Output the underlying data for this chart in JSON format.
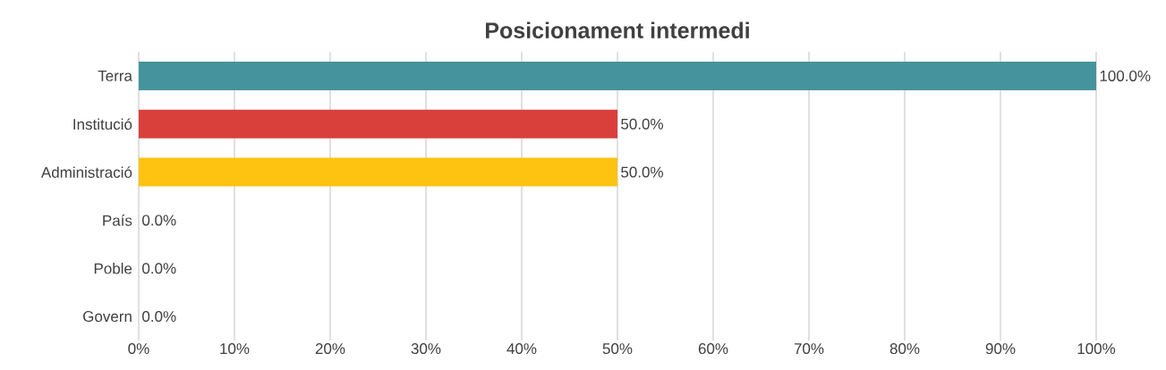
{
  "chart_data": {
    "type": "bar",
    "orientation": "horizontal",
    "title": "Posicionament intermedi",
    "categories": [
      "Terra",
      "Institució",
      "Administració",
      "País",
      "Poble",
      "Govern"
    ],
    "values": [
      100,
      50,
      50,
      0,
      0,
      0
    ],
    "colors": [
      "#45939c",
      "#d9403b",
      "#fec310",
      "#45939c",
      "#d9403b",
      "#fec310"
    ],
    "value_labels": [
      "100.0%",
      "50.0%",
      "50.0%",
      "0.0%",
      "0.0%",
      "0.0%"
    ],
    "xlim": [
      0,
      100
    ],
    "xticks": [
      {
        "value": 0,
        "label": "0%"
      },
      {
        "value": 10,
        "label": "10%"
      },
      {
        "value": 20,
        "label": "20%"
      },
      {
        "value": 30,
        "label": "30%"
      },
      {
        "value": 40,
        "label": "40%"
      },
      {
        "value": 50,
        "label": "50%"
      },
      {
        "value": 60,
        "label": "60%"
      },
      {
        "value": 70,
        "label": "70%"
      },
      {
        "value": 80,
        "label": "80%"
      },
      {
        "value": 90,
        "label": "90%"
      },
      {
        "value": 100,
        "label": "100%"
      }
    ],
    "grid": "x"
  }
}
